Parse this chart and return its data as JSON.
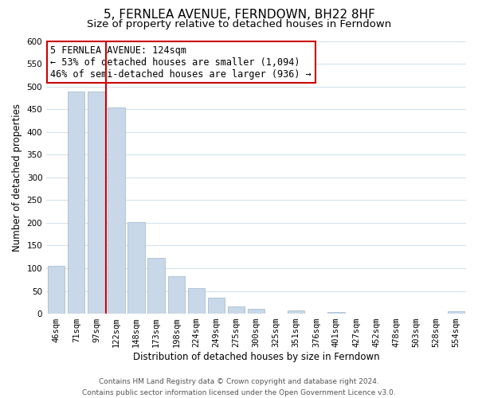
{
  "title": "5, FERNLEA AVENUE, FERNDOWN, BH22 8HF",
  "subtitle": "Size of property relative to detached houses in Ferndown",
  "xlabel": "Distribution of detached houses by size in Ferndown",
  "ylabel": "Number of detached properties",
  "bar_labels": [
    "46sqm",
    "71sqm",
    "97sqm",
    "122sqm",
    "148sqm",
    "173sqm",
    "198sqm",
    "224sqm",
    "249sqm",
    "275sqm",
    "300sqm",
    "325sqm",
    "351sqm",
    "376sqm",
    "401sqm",
    "427sqm",
    "452sqm",
    "478sqm",
    "503sqm",
    "528sqm",
    "554sqm"
  ],
  "bar_values": [
    105,
    488,
    488,
    453,
    202,
    122,
    83,
    57,
    36,
    16,
    10,
    0,
    7,
    0,
    3,
    0,
    0,
    0,
    0,
    0,
    5
  ],
  "bar_color": "#c8d8e8",
  "bar_edge_color": "#a8bece",
  "property_line_color": "#cc0000",
  "property_line_index": 2.5,
  "annotation_title": "5 FERNLEA AVENUE: 124sqm",
  "annotation_line1": "← 53% of detached houses are smaller (1,094)",
  "annotation_line2": "46% of semi-detached houses are larger (936) →",
  "annotation_box_color": "#ffffff",
  "annotation_box_edge": "#cc0000",
  "ylim": [
    0,
    600
  ],
  "yticks": [
    0,
    50,
    100,
    150,
    200,
    250,
    300,
    350,
    400,
    450,
    500,
    550,
    600
  ],
  "footer_line1": "Contains HM Land Registry data © Crown copyright and database right 2024.",
  "footer_line2": "Contains public sector information licensed under the Open Government Licence v3.0.",
  "background_color": "#ffffff",
  "grid_color": "#d0e0ec",
  "title_fontsize": 11,
  "subtitle_fontsize": 9.5,
  "axis_label_fontsize": 8.5,
  "tick_fontsize": 7.5,
  "footer_fontsize": 6.5,
  "annotation_fontsize": 8.5
}
